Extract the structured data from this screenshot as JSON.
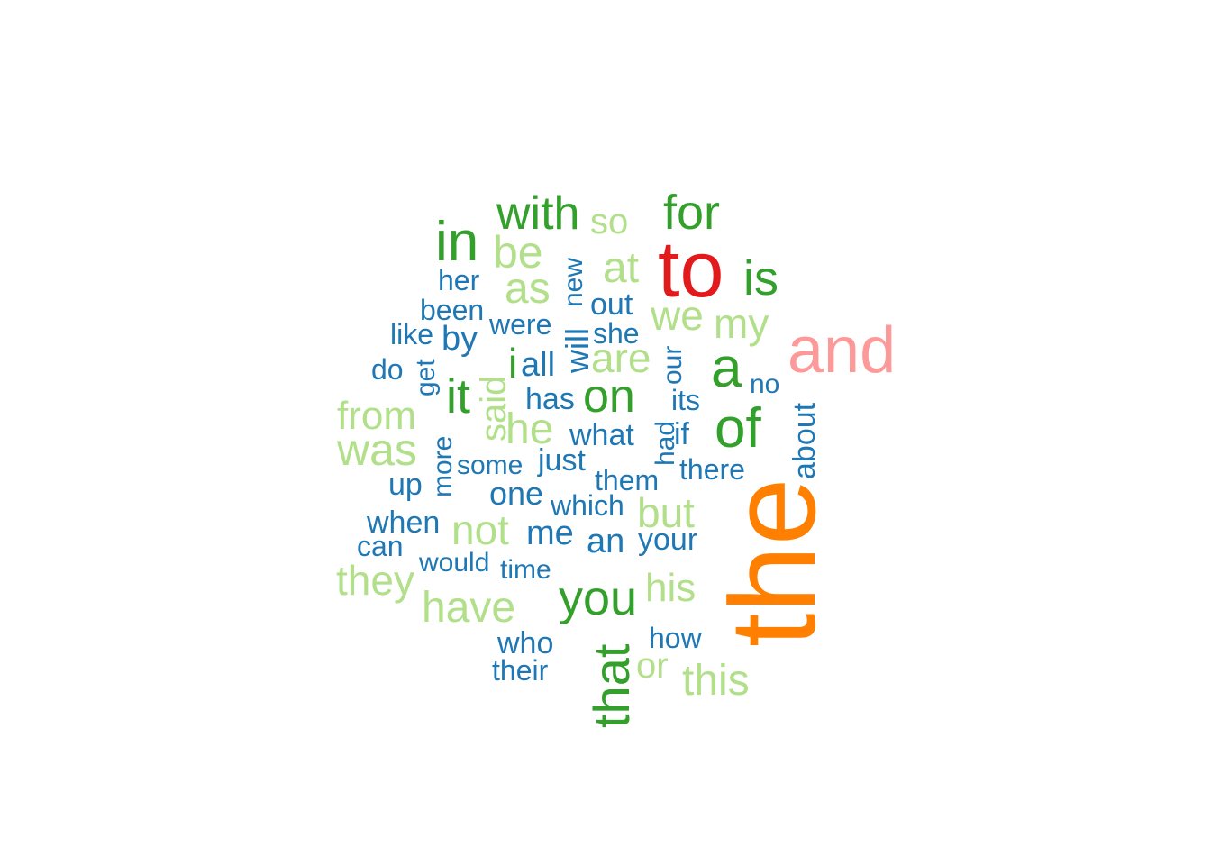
{
  "colors": {
    "blue": "#1f78b4",
    "light_green": "#b2df8a",
    "green": "#33a02c",
    "pink": "#fb9a99",
    "red": "#e31a1c",
    "orange": "#ff7f00"
  },
  "words": [
    "the",
    "to",
    "and",
    "of",
    "a",
    "in",
    "that",
    "is",
    "for",
    "it",
    "with",
    "you",
    "on",
    "i",
    "was",
    "he",
    "be",
    "as",
    "have",
    "at",
    "are",
    "his",
    "they",
    "we",
    "this",
    "not",
    "but",
    "from",
    "my",
    "said",
    "so",
    "or",
    "she",
    "by",
    "her",
    "been",
    "like",
    "get",
    "do",
    "more",
    "up",
    "when",
    "can",
    "some",
    "one",
    "would",
    "time",
    "who",
    "their",
    "were",
    "out",
    "will",
    "new",
    "all",
    "has",
    "what",
    "them",
    "just",
    "which",
    "me",
    "an",
    "your",
    "how",
    "had",
    "our",
    "its",
    "if",
    "there",
    "no",
    "about"
  ]
}
